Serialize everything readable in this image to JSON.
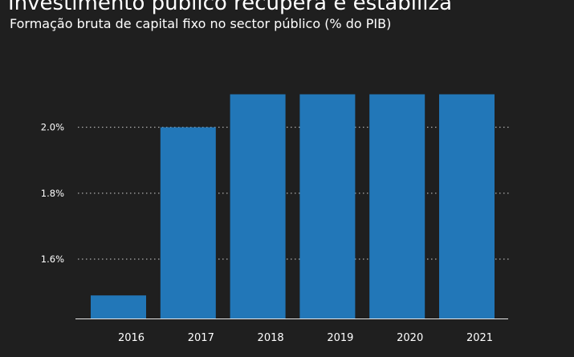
{
  "chart_data": {
    "type": "bar",
    "title": "Investimento público recupera e estabiliza",
    "subtitle": "Formação bruta de capital fixo no sector público (% do PIB)",
    "categories": [
      "2016",
      "2017",
      "2018",
      "2019",
      "2020",
      "2021"
    ],
    "values": [
      1.49,
      2.0,
      2.1,
      2.1,
      2.1,
      2.1
    ],
    "ylim": [
      1.42,
      2.24
    ],
    "yticks": [
      1.6,
      1.8,
      2.0
    ],
    "ytick_labels": [
      "1.6%",
      "1.8%",
      "2.0%"
    ],
    "xlabel": "",
    "ylabel": "",
    "grid": "horizontal dotted",
    "legend": "none",
    "colors": {
      "bar": "#2277b8",
      "background": "#1f1f1f",
      "text": "#ffffff",
      "grid": "#cfcfcf",
      "axis": "#e6e6e6"
    }
  }
}
